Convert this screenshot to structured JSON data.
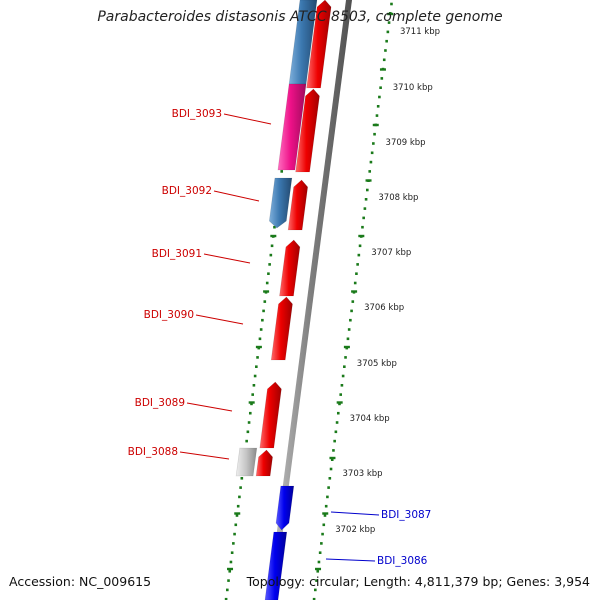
{
  "title": "Parabacteroides distasonis ATCC 8503, complete genome",
  "accession": "Accession: NC_009615",
  "summary": "Topology: circular; Length: 4,811,379 bp; Genes: 3,954",
  "colors": {
    "backbone": "#808080",
    "dots": "#1a7a1a",
    "forward_gene": "#ee0000",
    "reverse_gene": "#3b78b0",
    "magenta_gene": "#ee1188",
    "blue_gene": "#0000ee",
    "grey_gene": "#c0c0c0",
    "label_red": "#cc0000",
    "label_blue": "#0000cc"
  },
  "kbp_ticks": [
    {
      "label": "3711 kbp"
    },
    {
      "label": "3710 kbp"
    },
    {
      "label": "3709 kbp"
    },
    {
      "label": "3708 kbp"
    },
    {
      "label": "3707 kbp"
    },
    {
      "label": "3706 kbp"
    },
    {
      "label": "3705 kbp"
    },
    {
      "label": "3704 kbp"
    },
    {
      "label": "3703 kbp"
    },
    {
      "label": "3702 kbp"
    }
  ],
  "gene_labels": [
    {
      "name": "BDI_3093",
      "side": "left",
      "color": "red"
    },
    {
      "name": "BDI_3092",
      "side": "left",
      "color": "red"
    },
    {
      "name": "BDI_3091",
      "side": "left",
      "color": "red"
    },
    {
      "name": "BDI_3090",
      "side": "left",
      "color": "red"
    },
    {
      "name": "BDI_3089",
      "side": "left",
      "color": "red"
    },
    {
      "name": "BDI_3088",
      "side": "left",
      "color": "red"
    },
    {
      "name": "BDI_3087",
      "side": "right",
      "color": "blue"
    },
    {
      "name": "BDI_3086",
      "side": "right",
      "color": "blue"
    }
  ]
}
